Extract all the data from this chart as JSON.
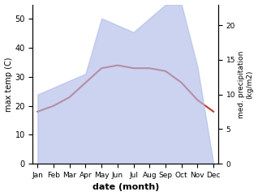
{
  "months": [
    "Jan",
    "Feb",
    "Mar",
    "Apr",
    "May",
    "Jun",
    "Jul",
    "Aug",
    "Sep",
    "Oct",
    "Nov",
    "Dec"
  ],
  "temp_max": [
    18,
    20,
    23,
    28,
    33,
    34,
    33,
    33,
    32,
    28,
    22,
    18
  ],
  "precip": [
    10,
    11,
    12,
    13,
    21,
    20,
    19,
    21,
    23,
    23,
    14,
    0
  ],
  "temp_color": "#c0392b",
  "precip_color": "#b0bce8",
  "ylabel_left": "max temp (C)",
  "ylabel_right": "med. precipitation\n(kg/m2)",
  "xlabel": "date (month)",
  "ylim_left": [
    0,
    55
  ],
  "ylim_right": [
    0,
    23.0
  ],
  "yticks_left": [
    0,
    10,
    20,
    30,
    40,
    50
  ],
  "yticks_right": [
    0,
    5,
    10,
    15,
    20
  ],
  "bg_color": "#ffffff"
}
